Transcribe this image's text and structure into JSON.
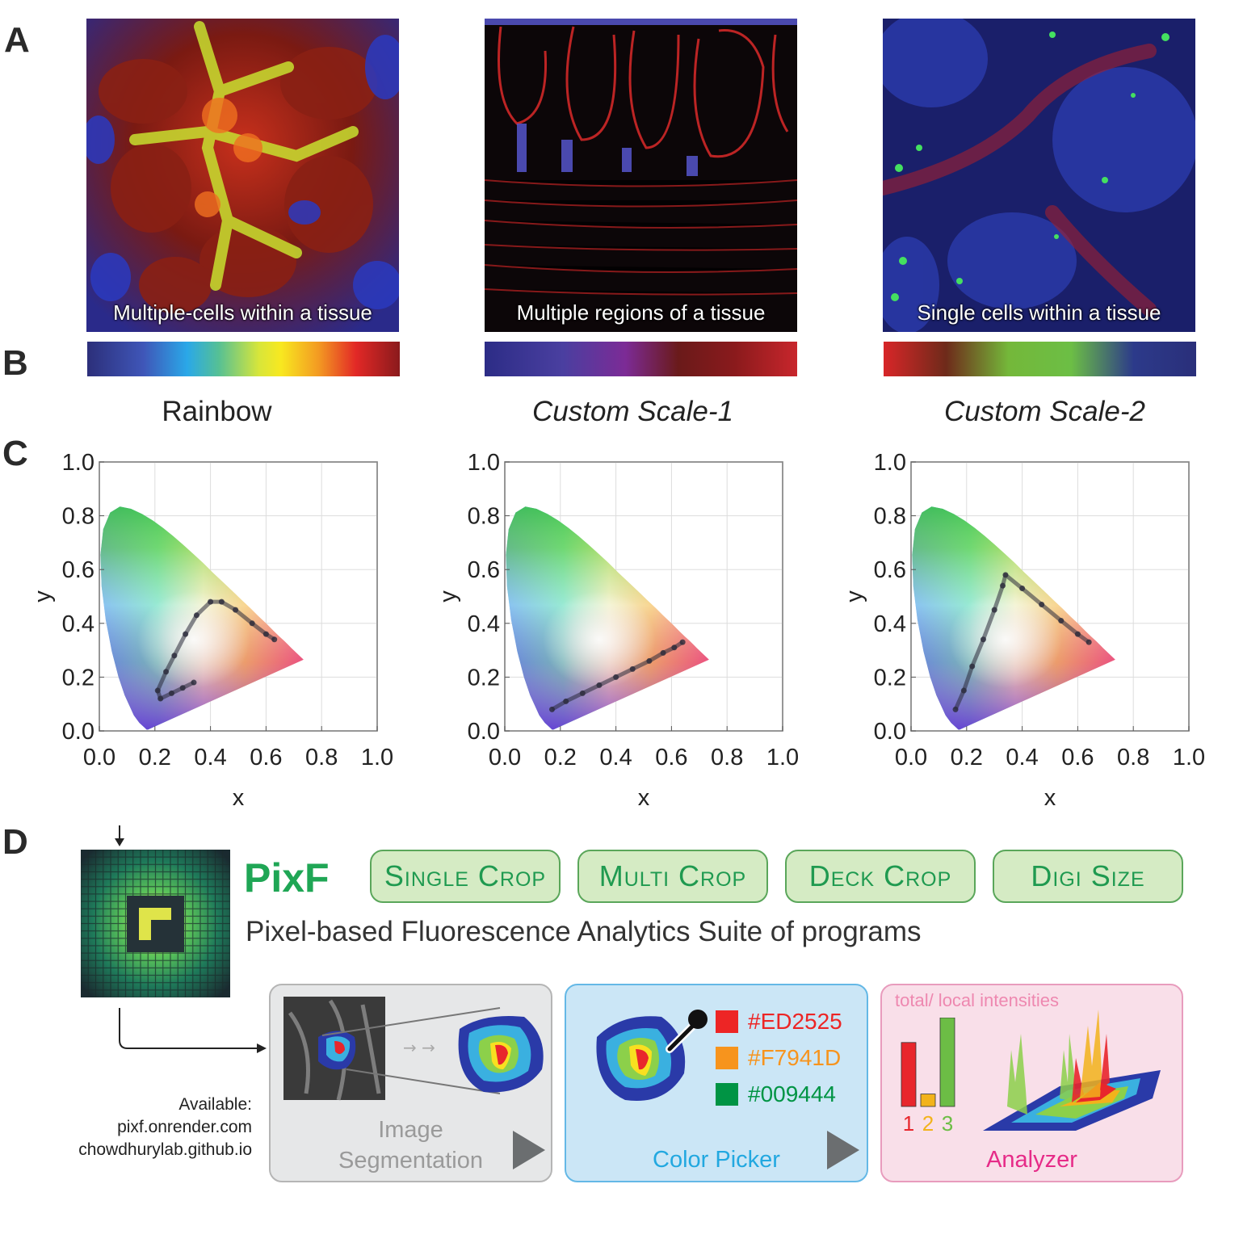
{
  "panels": {
    "a": "A",
    "b": "B",
    "c": "C",
    "d": "D"
  },
  "micrographs": [
    {
      "caption": "Multiple-cells within a tissue"
    },
    {
      "caption": "Multiple regions of a tissue"
    },
    {
      "caption": "Single cells within a tissue"
    }
  ],
  "scales": [
    {
      "title": "Rainbow"
    },
    {
      "title": "Custom Scale-1"
    },
    {
      "title": "Custom Scale-2"
    }
  ],
  "chart_data": [
    {
      "type": "scatter",
      "title": "",
      "xlabel": "x",
      "ylabel": "y",
      "xlim": [
        0.0,
        1.0
      ],
      "ylim": [
        0.0,
        1.0
      ],
      "xticks": [
        "0.0",
        "0.2",
        "0.4",
        "0.6",
        "0.8",
        "1.0"
      ],
      "yticks": [
        "0.0",
        "0.2",
        "0.4",
        "0.6",
        "0.8",
        "1.0"
      ],
      "grid": true,
      "points": [
        [
          0.34,
          0.18
        ],
        [
          0.3,
          0.16
        ],
        [
          0.26,
          0.14
        ],
        [
          0.22,
          0.12
        ],
        [
          0.21,
          0.15
        ],
        [
          0.24,
          0.22
        ],
        [
          0.27,
          0.28
        ],
        [
          0.31,
          0.36
        ],
        [
          0.35,
          0.43
        ],
        [
          0.4,
          0.48
        ],
        [
          0.44,
          0.48
        ],
        [
          0.49,
          0.45
        ],
        [
          0.55,
          0.4
        ],
        [
          0.6,
          0.36
        ],
        [
          0.63,
          0.34
        ]
      ]
    },
    {
      "type": "scatter",
      "title": "",
      "xlabel": "x",
      "ylabel": "y",
      "xlim": [
        0.0,
        1.0
      ],
      "ylim": [
        0.0,
        1.0
      ],
      "xticks": [
        "0.0",
        "0.2",
        "0.4",
        "0.6",
        "0.8",
        "1.0"
      ],
      "yticks": [
        "0.0",
        "0.2",
        "0.4",
        "0.6",
        "0.8",
        "1.0"
      ],
      "grid": true,
      "points": [
        [
          0.17,
          0.08
        ],
        [
          0.22,
          0.11
        ],
        [
          0.28,
          0.14
        ],
        [
          0.34,
          0.17
        ],
        [
          0.4,
          0.2
        ],
        [
          0.46,
          0.23
        ],
        [
          0.52,
          0.26
        ],
        [
          0.57,
          0.29
        ],
        [
          0.61,
          0.31
        ],
        [
          0.64,
          0.33
        ]
      ]
    },
    {
      "type": "scatter",
      "title": "",
      "xlabel": "x",
      "ylabel": "y",
      "xlim": [
        0.0,
        1.0
      ],
      "ylim": [
        0.0,
        1.0
      ],
      "xticks": [
        "0.0",
        "0.2",
        "0.4",
        "0.6",
        "0.8",
        "1.0"
      ],
      "yticks": [
        "0.0",
        "0.2",
        "0.4",
        "0.6",
        "0.8",
        "1.0"
      ],
      "grid": true,
      "points": [
        [
          0.16,
          0.08
        ],
        [
          0.19,
          0.15
        ],
        [
          0.22,
          0.24
        ],
        [
          0.26,
          0.34
        ],
        [
          0.3,
          0.45
        ],
        [
          0.33,
          0.54
        ],
        [
          0.34,
          0.58
        ],
        [
          0.4,
          0.53
        ],
        [
          0.47,
          0.47
        ],
        [
          0.54,
          0.41
        ],
        [
          0.6,
          0.36
        ],
        [
          0.64,
          0.33
        ]
      ]
    }
  ],
  "suite": {
    "name": "PixF",
    "description": "Pixel-based Fluorescence Analytics Suite of programs",
    "buttons": [
      "Single Crop",
      "Multi Crop",
      "Deck Crop",
      "Digi Size"
    ],
    "availability": [
      "Available:",
      "pixf.onrender.com",
      "chowdhurylab.github.io"
    ]
  },
  "modules": {
    "segmentation": {
      "line1": "Image",
      "line2": "Segmentation"
    },
    "color_picker": {
      "label": "Color Picker",
      "swatches": [
        {
          "hex": "#ED2525",
          "color": "#ED2525"
        },
        {
          "hex": "#F7941D",
          "color": "#F7941D"
        },
        {
          "hex": "#009444",
          "color": "#009444"
        }
      ]
    },
    "analyzer": {
      "label": "Analyzer",
      "note": "total/ local intensities",
      "bars": [
        {
          "label": "1",
          "value": 0.72,
          "color": "#e8262c"
        },
        {
          "label": "2",
          "value": 0.14,
          "color": "#f2b31b"
        },
        {
          "label": "3",
          "value": 1.0,
          "color": "#6cbd45"
        }
      ]
    }
  }
}
